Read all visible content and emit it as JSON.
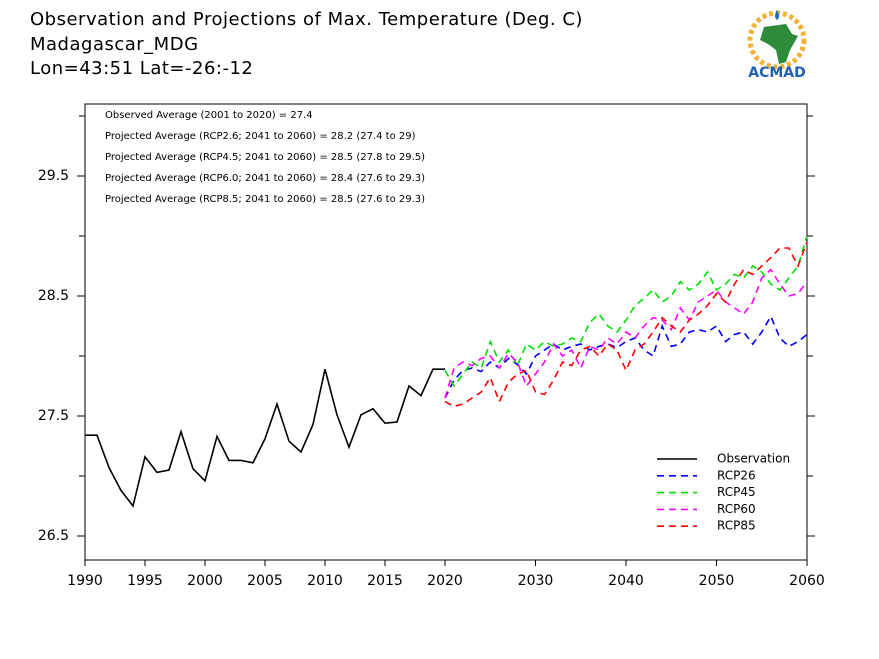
{
  "chart_data": {
    "type": "line",
    "title": "Observation and Projections of Max. Temperature (Deg. C)",
    "subtitle": "Madagascar_MDG",
    "location": "Lon=43:51   Lat=-26:-12",
    "logo_text": "ACMAD",
    "annotations": [
      "Observed Average (2001 to 2020) = 27.4",
      "Projected Average (RCP2.6; 2041 to 2060) = 28.2 (27.4 to 29)",
      "Projected Average (RCP4.5; 2041 to 2060) = 28.5 (27.8 to 29.5)",
      "Projected Average (RCP6.0; 2041 to 2060) = 28.4 (27.6 to 29.3)",
      "Projected Average (RCP8.5; 2041 to 2060) = 28.5 (27.6 to 29.3)"
    ],
    "xlim": [
      1990,
      2060
    ],
    "xticks": [
      1990,
      1995,
      2000,
      2005,
      2010,
      2015,
      2020,
      2030,
      2040,
      2050,
      2060
    ],
    "ylim": [
      26.3,
      30.1
    ],
    "yticks": [
      26.5,
      27.5,
      28.5,
      29.5
    ],
    "yminorticks": [
      27,
      28,
      29,
      30
    ],
    "legend_position": "lower right",
    "series": [
      {
        "name": "Observation",
        "color": "#000000",
        "style": "solid",
        "x": [
          1990,
          1991,
          1992,
          1993,
          1994,
          1995,
          1996,
          1997,
          1998,
          1999,
          2000,
          2001,
          2002,
          2003,
          2004,
          2005,
          2006,
          2007,
          2008,
          2009,
          2010,
          2011,
          2012,
          2013,
          2014,
          2015,
          2016,
          2017,
          2018,
          2019,
          2020
        ],
        "values": [
          27.34,
          27.34,
          27.07,
          26.88,
          26.75,
          27.16,
          27.03,
          27.05,
          27.37,
          27.06,
          26.96,
          27.33,
          27.13,
          27.13,
          27.11,
          27.31,
          27.6,
          27.29,
          27.2,
          27.43,
          27.89,
          27.51,
          27.24,
          27.51,
          27.56,
          27.44,
          27.45,
          27.75,
          27.67,
          27.89,
          27.89
        ]
      },
      {
        "name": "RCP26",
        "color": "#0000ff",
        "style": "dashed",
        "x": [
          2020,
          2021,
          2022,
          2023,
          2024,
          2025,
          2026,
          2027,
          2028,
          2029,
          2030,
          2031,
          2032,
          2033,
          2034,
          2035,
          2036,
          2037,
          2038,
          2039,
          2040,
          2041,
          2042,
          2043,
          2044,
          2045,
          2046,
          2047,
          2048,
          2049,
          2050,
          2051,
          2052,
          2053,
          2054,
          2055,
          2056,
          2057,
          2058,
          2059,
          2060
        ],
        "values": [
          27.65,
          27.8,
          27.88,
          27.9,
          27.87,
          27.95,
          27.9,
          27.98,
          27.93,
          27.85,
          28.0,
          28.05,
          28.1,
          28.05,
          28.08,
          28.1,
          28.05,
          28.08,
          28.1,
          28.07,
          28.12,
          28.15,
          28.05,
          28.0,
          28.25,
          28.08,
          28.1,
          28.2,
          28.22,
          28.2,
          28.25,
          28.12,
          28.18,
          28.2,
          28.1,
          28.2,
          28.33,
          28.15,
          28.08,
          28.12,
          28.18
        ]
      },
      {
        "name": "RCP45",
        "color": "#00e000",
        "style": "dashed",
        "x": [
          2020,
          2021,
          2022,
          2023,
          2024,
          2025,
          2026,
          2027,
          2028,
          2029,
          2030,
          2031,
          2032,
          2033,
          2034,
          2035,
          2036,
          2037,
          2038,
          2039,
          2040,
          2041,
          2042,
          2043,
          2044,
          2045,
          2046,
          2047,
          2048,
          2049,
          2050,
          2051,
          2052,
          2053,
          2054,
          2055,
          2056,
          2057,
          2058,
          2059,
          2060
        ],
        "values": [
          27.88,
          27.75,
          27.85,
          27.95,
          27.9,
          28.12,
          27.95,
          28.05,
          27.92,
          28.1,
          28.05,
          28.12,
          28.08,
          28.1,
          28.15,
          28.12,
          28.28,
          28.35,
          28.25,
          28.2,
          28.3,
          28.42,
          28.48,
          28.55,
          28.45,
          28.5,
          28.62,
          28.55,
          28.6,
          28.7,
          28.55,
          28.6,
          28.68,
          28.65,
          28.75,
          28.7,
          28.6,
          28.55,
          28.65,
          28.75,
          29.0
        ]
      },
      {
        "name": "RCP60",
        "color": "#ff00ff",
        "style": "dashed",
        "x": [
          2020,
          2021,
          2022,
          2023,
          2024,
          2025,
          2026,
          2027,
          2028,
          2029,
          2030,
          2031,
          2032,
          2033,
          2034,
          2035,
          2036,
          2037,
          2038,
          2039,
          2040,
          2041,
          2042,
          2043,
          2044,
          2045,
          2046,
          2047,
          2048,
          2049,
          2050,
          2051,
          2052,
          2053,
          2054,
          2055,
          2056,
          2057,
          2058,
          2059,
          2060
        ],
        "values": [
          27.65,
          27.9,
          27.95,
          27.92,
          27.98,
          28.0,
          27.9,
          28.02,
          27.95,
          27.75,
          27.85,
          27.95,
          28.1,
          28.0,
          28.05,
          27.9,
          28.08,
          28.05,
          28.15,
          28.1,
          28.2,
          28.15,
          28.25,
          28.32,
          28.3,
          28.22,
          28.4,
          28.3,
          28.45,
          28.5,
          28.55,
          28.45,
          28.4,
          28.35,
          28.45,
          28.65,
          28.72,
          28.6,
          28.5,
          28.52,
          28.62
        ]
      },
      {
        "name": "RCP85",
        "color": "#ff0000",
        "style": "dashed",
        "x": [
          2020,
          2021,
          2022,
          2023,
          2024,
          2025,
          2026,
          2027,
          2028,
          2029,
          2030,
          2031,
          2032,
          2033,
          2034,
          2035,
          2036,
          2037,
          2038,
          2039,
          2040,
          2041,
          2042,
          2043,
          2044,
          2045,
          2046,
          2047,
          2048,
          2049,
          2050,
          2051,
          2052,
          2053,
          2054,
          2055,
          2056,
          2057,
          2058,
          2059,
          2060
        ],
        "values": [
          27.62,
          27.58,
          27.6,
          27.65,
          27.7,
          27.82,
          27.62,
          27.78,
          27.85,
          27.88,
          27.7,
          27.68,
          27.8,
          27.95,
          27.92,
          28.05,
          28.08,
          28.0,
          28.1,
          28.05,
          27.88,
          28.05,
          28.1,
          28.2,
          28.32,
          28.25,
          28.2,
          28.3,
          28.35,
          28.42,
          28.52,
          28.45,
          28.6,
          28.72,
          28.68,
          28.75,
          28.82,
          28.9,
          28.9,
          28.75,
          28.95
        ]
      }
    ]
  }
}
